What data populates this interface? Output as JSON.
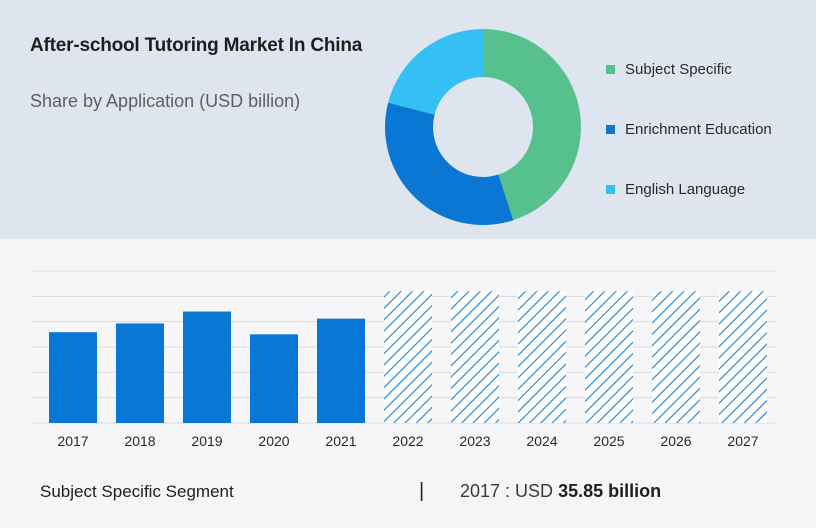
{
  "header": {
    "title": "After-school Tutoring Market In China",
    "subtitle": "Share by Application (USD billion)"
  },
  "colors": {
    "top_background": "#dfe5ef",
    "bottom_background": "#f6f6f8",
    "bar": "#0b77d4",
    "hatch": "#1a7fd6",
    "subject_specific": "#57c08f",
    "enrichment_education": "#0b77d4",
    "english_language": "#35c0f5"
  },
  "chart_data": [
    {
      "type": "pie",
      "style": "donut",
      "title": "Share by Application (USD billion)",
      "labels": [
        "Subject Specific",
        "Enrichment Education",
        "English Language"
      ],
      "values": [
        45,
        34,
        21
      ],
      "colors": [
        "#57c08f",
        "#0b77d4",
        "#35c0f5"
      ],
      "legend_position": "right"
    },
    {
      "type": "bar",
      "categories": [
        "2017",
        "2018",
        "2019",
        "2020",
        "2021",
        "2022",
        "2023",
        "2024",
        "2025",
        "2026",
        "2027"
      ],
      "values": [
        35.85,
        39.3,
        44.0,
        35.0,
        41.2,
        52.0,
        52.0,
        52.0,
        52.0,
        52.0,
        52.0
      ],
      "forecast_from": "2022",
      "forecast_style": "hatched",
      "ylim": [
        0,
        60
      ],
      "grid": true
    }
  ],
  "footer": {
    "segment_label": "Subject Specific Segment",
    "divider": "|",
    "value_prefix": "2017 : USD ",
    "value_highlight": "35.85 billion"
  }
}
